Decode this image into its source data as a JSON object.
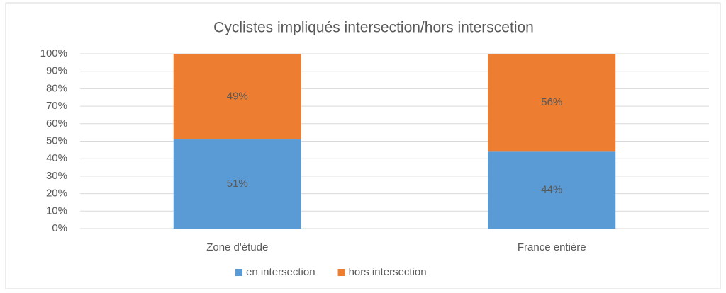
{
  "chart_data": {
    "type": "bar",
    "stacked": true,
    "title": "Cyclistes impliqués intersection/hors interscetion",
    "categories": [
      "Zone d'étude",
      "France entière"
    ],
    "series": [
      {
        "name": "en intersection",
        "color": "#5b9bd5",
        "values": [
          51,
          44
        ],
        "value_labels": [
          "51%",
          "44%"
        ]
      },
      {
        "name": "hors intersection",
        "color": "#ed7d31",
        "values": [
          49,
          56
        ],
        "value_labels": [
          "49%",
          "56%"
        ]
      }
    ],
    "ylim": [
      0,
      100
    ],
    "yticks": [
      {
        "value": 0,
        "label": "0%"
      },
      {
        "value": 10,
        "label": "10%"
      },
      {
        "value": 20,
        "label": "20%"
      },
      {
        "value": 30,
        "label": "30%"
      },
      {
        "value": 40,
        "label": "40%"
      },
      {
        "value": 50,
        "label": "50%"
      },
      {
        "value": 60,
        "label": "60%"
      },
      {
        "value": 70,
        "label": "70%"
      },
      {
        "value": 80,
        "label": "80%"
      },
      {
        "value": 90,
        "label": "90%"
      },
      {
        "value": 100,
        "label": "100%"
      }
    ],
    "grid": true,
    "legend": "bottom"
  }
}
